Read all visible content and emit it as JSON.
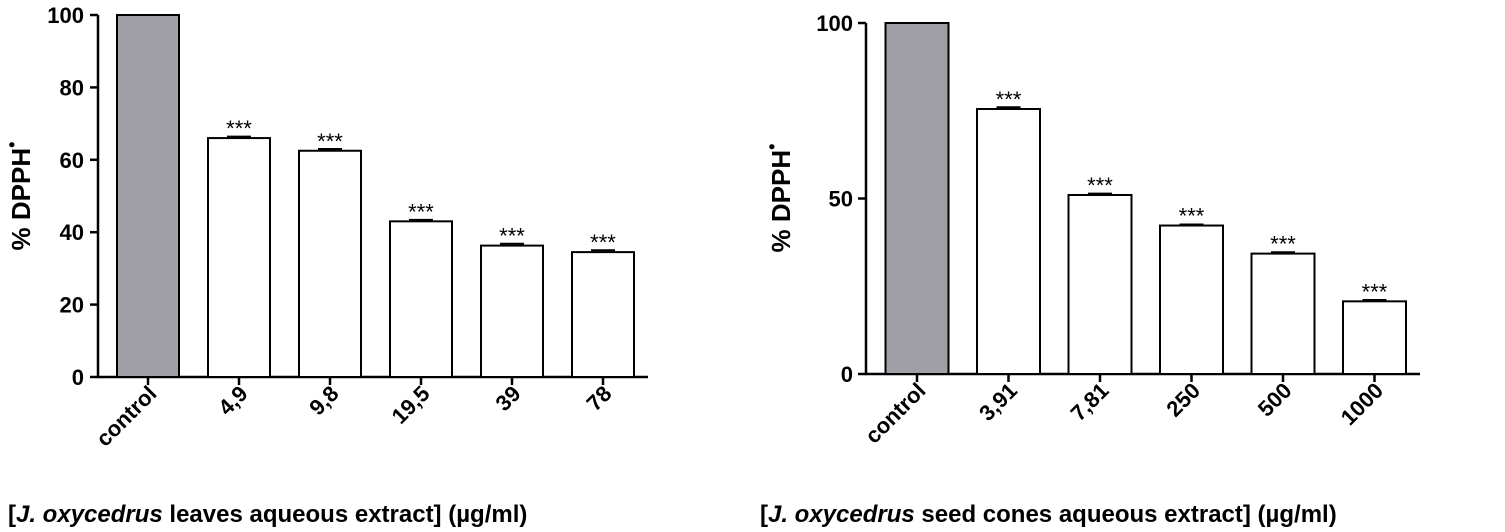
{
  "chart_data": [
    {
      "type": "bar",
      "categories": [
        "control",
        "4,9",
        "9,8",
        "19,5",
        "39",
        "78"
      ],
      "values": [
        100,
        66,
        62.5,
        43,
        36.3,
        34.5
      ],
      "errors": [
        0,
        0.4,
        0.5,
        0.4,
        0.5,
        0.5
      ],
      "significance": [
        "",
        "***",
        "***",
        "***",
        "***",
        "***"
      ],
      "ylim": [
        0,
        100
      ],
      "yticks": [
        0,
        20,
        40,
        60,
        80,
        100
      ],
      "ylabel": {
        "main": "% DPPH",
        "sup": "•"
      },
      "xlabel": {
        "open": "[",
        "species": "J. oxycedrus",
        "rest": " leaves aqueous extract] (µg/ml)"
      },
      "colors": {
        "control": "#a09fa5",
        "treatment": "#ffffff"
      }
    },
    {
      "type": "bar",
      "categories": [
        "control",
        "3,91",
        "7,81",
        "250",
        "500",
        "1000"
      ],
      "values": [
        100,
        75.5,
        51,
        42.3,
        34.3,
        20.7
      ],
      "errors": [
        0,
        0.5,
        0.4,
        0.3,
        0.4,
        0.4
      ],
      "significance": [
        "",
        "***",
        "***",
        "***",
        "***",
        "***"
      ],
      "ylim": [
        0,
        100
      ],
      "yticks": [
        0,
        50,
        100
      ],
      "ylabel": {
        "main": "% DPPH",
        "sup": "•"
      },
      "xlabel": {
        "open": "[",
        "species": "J. oxycedrus",
        "rest": " seed cones aqueous extract] (µg/ml)"
      },
      "colors": {
        "control": "#a09fa5",
        "treatment": "#ffffff"
      }
    }
  ]
}
